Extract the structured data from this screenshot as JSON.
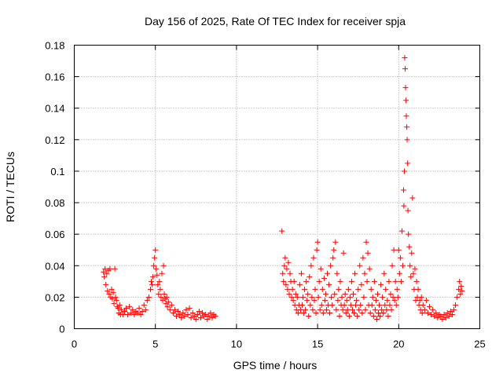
{
  "chart_data": {
    "type": "scatter",
    "title": "Day 156 of 2025, Rate Of TEC Index for receiver spja",
    "xlabel": "GPS time / hours",
    "ylabel": "ROTI / TECUs",
    "xlim": [
      0,
      25
    ],
    "ylim": [
      0,
      0.18
    ],
    "xticks": [
      0,
      5,
      10,
      15,
      20,
      25
    ],
    "yticks": [
      0,
      0.02,
      0.04,
      0.06,
      0.08,
      0.1,
      0.12,
      0.14,
      0.16,
      0.18
    ],
    "xtick_labels": [
      "0",
      "5",
      "10",
      "15",
      "20",
      "25"
    ],
    "ytick_labels": [
      "0",
      "0.02",
      "0.04",
      "0.06",
      "0.08",
      "0.1",
      "0.12",
      "0.14",
      "0.16",
      "0.18"
    ],
    "grid": true,
    "marker": "+",
    "color": "#ff0000",
    "series": [
      {
        "name": "ROTI",
        "points": [
          [
            1.8,
            0.036
          ],
          [
            1.85,
            0.033
          ],
          [
            1.9,
            0.038
          ],
          [
            1.95,
            0.028
          ],
          [
            2.0,
            0.035
          ],
          [
            2.05,
            0.024
          ],
          [
            2.1,
            0.037
          ],
          [
            2.15,
            0.022
          ],
          [
            2.2,
            0.038
          ],
          [
            2.25,
            0.02
          ],
          [
            2.3,
            0.025
          ],
          [
            2.35,
            0.019
          ],
          [
            2.4,
            0.023
          ],
          [
            2.45,
            0.016
          ],
          [
            2.5,
            0.038
          ],
          [
            2.55,
            0.02
          ],
          [
            2.6,
            0.018
          ],
          [
            2.65,
            0.014
          ],
          [
            2.7,
            0.013
          ],
          [
            2.75,
            0.01
          ],
          [
            2.8,
            0.015
          ],
          [
            2.85,
            0.009
          ],
          [
            2.9,
            0.012
          ],
          [
            3.0,
            0.009
          ],
          [
            3.1,
            0.011
          ],
          [
            3.2,
            0.013
          ],
          [
            3.3,
            0.009
          ],
          [
            3.4,
            0.014
          ],
          [
            3.5,
            0.01
          ],
          [
            3.6,
            0.012
          ],
          [
            3.7,
            0.009
          ],
          [
            3.8,
            0.011
          ],
          [
            3.9,
            0.01
          ],
          [
            4.0,
            0.013
          ],
          [
            4.1,
            0.009
          ],
          [
            4.2,
            0.011
          ],
          [
            4.3,
            0.015
          ],
          [
            4.4,
            0.012
          ],
          [
            4.5,
            0.018
          ],
          [
            4.6,
            0.02
          ],
          [
            4.7,
            0.025
          ],
          [
            4.75,
            0.03
          ],
          [
            4.8,
            0.028
          ],
          [
            4.85,
            0.033
          ],
          [
            4.9,
            0.04
          ],
          [
            4.95,
            0.045
          ],
          [
            5.0,
            0.05
          ],
          [
            5.05,
            0.038
          ],
          [
            5.1,
            0.034
          ],
          [
            5.15,
            0.028
          ],
          [
            5.2,
            0.022
          ],
          [
            5.25,
            0.03
          ],
          [
            5.3,
            0.025
          ],
          [
            5.35,
            0.02
          ],
          [
            5.4,
            0.035
          ],
          [
            5.45,
            0.018
          ],
          [
            5.5,
            0.04
          ],
          [
            5.55,
            0.022
          ],
          [
            5.6,
            0.019
          ],
          [
            5.65,
            0.016
          ],
          [
            5.7,
            0.02
          ],
          [
            5.75,
            0.014
          ],
          [
            5.8,
            0.017
          ],
          [
            5.9,
            0.012
          ],
          [
            6.0,
            0.015
          ],
          [
            6.1,
            0.01
          ],
          [
            6.2,
            0.012
          ],
          [
            6.3,
            0.008
          ],
          [
            6.4,
            0.011
          ],
          [
            6.5,
            0.009
          ],
          [
            6.6,
            0.007
          ],
          [
            6.7,
            0.01
          ],
          [
            6.8,
            0.008
          ],
          [
            6.9,
            0.012
          ],
          [
            7.0,
            0.009
          ],
          [
            7.1,
            0.013
          ],
          [
            7.2,
            0.007
          ],
          [
            7.3,
            0.01
          ],
          [
            7.4,
            0.008
          ],
          [
            7.5,
            0.006
          ],
          [
            7.6,
            0.009
          ],
          [
            7.7,
            0.011
          ],
          [
            7.8,
            0.007
          ],
          [
            7.9,
            0.01
          ],
          [
            8.0,
            0.008
          ],
          [
            8.1,
            0.009
          ],
          [
            8.2,
            0.006
          ],
          [
            8.3,
            0.008
          ],
          [
            8.4,
            0.01
          ],
          [
            8.5,
            0.007
          ],
          [
            8.6,
            0.009
          ],
          [
            8.7,
            0.008
          ],
          [
            12.8,
            0.062
          ],
          [
            12.85,
            0.035
          ],
          [
            12.9,
            0.03
          ],
          [
            12.95,
            0.04
          ],
          [
            13.0,
            0.045
          ],
          [
            13.05,
            0.028
          ],
          [
            13.1,
            0.038
          ],
          [
            13.15,
            0.025
          ],
          [
            13.2,
            0.042
          ],
          [
            13.25,
            0.022
          ],
          [
            13.3,
            0.035
          ],
          [
            13.35,
            0.03
          ],
          [
            13.4,
            0.02
          ],
          [
            13.45,
            0.025
          ],
          [
            13.5,
            0.018
          ],
          [
            13.55,
            0.03
          ],
          [
            13.6,
            0.015
          ],
          [
            13.65,
            0.022
          ],
          [
            13.7,
            0.012
          ],
          [
            13.75,
            0.02
          ],
          [
            13.8,
            0.01
          ],
          [
            13.85,
            0.015
          ],
          [
            13.9,
            0.028
          ],
          [
            13.95,
            0.012
          ],
          [
            14.0,
            0.035
          ],
          [
            14.05,
            0.015
          ],
          [
            14.1,
            0.02
          ],
          [
            14.15,
            0.01
          ],
          [
            14.2,
            0.025
          ],
          [
            14.25,
            0.012
          ],
          [
            14.3,
            0.03
          ],
          [
            14.35,
            0.018
          ],
          [
            14.4,
            0.022
          ],
          [
            14.45,
            0.008
          ],
          [
            14.5,
            0.033
          ],
          [
            14.55,
            0.015
          ],
          [
            14.6,
            0.04
          ],
          [
            14.65,
            0.02
          ],
          [
            14.7,
            0.012
          ],
          [
            14.75,
            0.045
          ],
          [
            14.8,
            0.018
          ],
          [
            14.85,
            0.025
          ],
          [
            14.9,
            0.01
          ],
          [
            14.95,
            0.05
          ],
          [
            15.0,
            0.055
          ],
          [
            15.05,
            0.02
          ],
          [
            15.1,
            0.03
          ],
          [
            15.15,
            0.012
          ],
          [
            15.2,
            0.038
          ],
          [
            15.25,
            0.015
          ],
          [
            15.3,
            0.025
          ],
          [
            15.35,
            0.01
          ],
          [
            15.4,
            0.032
          ],
          [
            15.45,
            0.018
          ],
          [
            15.5,
            0.022
          ],
          [
            15.55,
            0.012
          ],
          [
            15.6,
            0.035
          ],
          [
            15.65,
            0.015
          ],
          [
            15.7,
            0.028
          ],
          [
            15.75,
            0.01
          ],
          [
            15.8,
            0.04
          ],
          [
            15.85,
            0.02
          ],
          [
            15.9,
            0.015
          ],
          [
            15.95,
            0.045
          ],
          [
            16.0,
            0.05
          ],
          [
            16.05,
            0.022
          ],
          [
            16.1,
            0.055
          ],
          [
            16.15,
            0.012
          ],
          [
            16.2,
            0.035
          ],
          [
            16.25,
            0.018
          ],
          [
            16.3,
            0.025
          ],
          [
            16.35,
            0.008
          ],
          [
            16.4,
            0.03
          ],
          [
            16.45,
            0.015
          ],
          [
            16.5,
            0.02
          ],
          [
            16.55,
            0.012
          ],
          [
            16.6,
            0.048
          ],
          [
            16.65,
            0.015
          ],
          [
            16.7,
            0.022
          ],
          [
            16.75,
            0.01
          ],
          [
            16.8,
            0.018
          ],
          [
            16.85,
            0.012
          ],
          [
            16.9,
            0.025
          ],
          [
            16.95,
            0.008
          ],
          [
            17.0,
            0.02
          ],
          [
            17.05,
            0.015
          ],
          [
            17.1,
            0.03
          ],
          [
            17.15,
            0.012
          ],
          [
            17.2,
            0.022
          ],
          [
            17.25,
            0.01
          ],
          [
            17.3,
            0.035
          ],
          [
            17.35,
            0.015
          ],
          [
            17.4,
            0.018
          ],
          [
            17.45,
            0.008
          ],
          [
            17.5,
            0.025
          ],
          [
            17.55,
            0.012
          ],
          [
            17.6,
            0.04
          ],
          [
            17.65,
            0.015
          ],
          [
            17.7,
            0.028
          ],
          [
            17.75,
            0.01
          ],
          [
            17.8,
            0.045
          ],
          [
            17.85,
            0.02
          ],
          [
            17.9,
            0.035
          ],
          [
            17.95,
            0.012
          ],
          [
            18.0,
            0.055
          ],
          [
            18.05,
            0.03
          ],
          [
            18.1,
            0.048
          ],
          [
            18.15,
            0.015
          ],
          [
            18.2,
            0.038
          ],
          [
            18.25,
            0.01
          ],
          [
            18.3,
            0.025
          ],
          [
            18.35,
            0.015
          ],
          [
            18.4,
            0.02
          ],
          [
            18.45,
            0.008
          ],
          [
            18.5,
            0.03
          ],
          [
            18.55,
            0.012
          ],
          [
            18.6,
            0.018
          ],
          [
            18.65,
            0.006
          ],
          [
            18.7,
            0.022
          ],
          [
            18.75,
            0.01
          ],
          [
            18.8,
            0.015
          ],
          [
            18.85,
            0.008
          ],
          [
            18.9,
            0.028
          ],
          [
            18.95,
            0.012
          ],
          [
            19.0,
            0.02
          ],
          [
            19.05,
            0.01
          ],
          [
            19.1,
            0.035
          ],
          [
            19.15,
            0.015
          ],
          [
            19.2,
            0.025
          ],
          [
            19.25,
            0.012
          ],
          [
            19.3,
            0.018
          ],
          [
            19.35,
            0.008
          ],
          [
            19.4,
            0.03
          ],
          [
            19.45,
            0.015
          ],
          [
            19.5,
            0.022
          ],
          [
            19.55,
            0.012
          ],
          [
            19.6,
            0.04
          ],
          [
            19.65,
            0.02
          ],
          [
            19.7,
            0.05
          ],
          [
            19.75,
            0.018
          ],
          [
            19.8,
            0.03
          ],
          [
            19.85,
            0.015
          ],
          [
            19.9,
            0.025
          ],
          [
            19.95,
            0.02
          ],
          [
            20.0,
            0.05
          ],
          [
            20.05,
            0.035
          ],
          [
            20.1,
            0.045
          ],
          [
            20.15,
            0.03
          ],
          [
            20.2,
            0.062
          ],
          [
            20.25,
            0.04
          ],
          [
            20.3,
            0.088
          ],
          [
            20.32,
            0.078
          ],
          [
            20.35,
            0.1
          ],
          [
            20.37,
            0.172
          ],
          [
            20.4,
            0.165
          ],
          [
            20.42,
            0.153
          ],
          [
            20.45,
            0.145
          ],
          [
            20.47,
            0.135
          ],
          [
            20.5,
            0.128
          ],
          [
            20.52,
            0.12
          ],
          [
            20.55,
            0.105
          ],
          [
            20.57,
            0.075
          ],
          [
            20.6,
            0.06
          ],
          [
            20.65,
            0.052
          ],
          [
            20.7,
            0.04
          ],
          [
            20.75,
            0.033
          ],
          [
            20.8,
            0.048
          ],
          [
            20.85,
            0.083
          ],
          [
            20.9,
            0.035
          ],
          [
            20.95,
            0.025
          ],
          [
            21.0,
            0.038
          ],
          [
            21.05,
            0.018
          ],
          [
            21.1,
            0.03
          ],
          [
            21.15,
            0.02
          ],
          [
            21.2,
            0.025
          ],
          [
            21.25,
            0.015
          ],
          [
            21.3,
            0.018
          ],
          [
            21.35,
            0.012
          ],
          [
            21.4,
            0.02
          ],
          [
            21.45,
            0.01
          ],
          [
            21.5,
            0.015
          ],
          [
            21.6,
            0.012
          ],
          [
            21.7,
            0.018
          ],
          [
            21.8,
            0.01
          ],
          [
            21.9,
            0.014
          ],
          [
            22.0,
            0.009
          ],
          [
            22.1,
            0.012
          ],
          [
            22.2,
            0.008
          ],
          [
            22.3,
            0.01
          ],
          [
            22.4,
            0.007
          ],
          [
            22.5,
            0.009
          ],
          [
            22.6,
            0.008
          ],
          [
            22.7,
            0.006
          ],
          [
            22.8,
            0.009
          ],
          [
            22.9,
            0.007
          ],
          [
            23.0,
            0.01
          ],
          [
            23.1,
            0.008
          ],
          [
            23.2,
            0.011
          ],
          [
            23.3,
            0.009
          ],
          [
            23.4,
            0.012
          ],
          [
            23.5,
            0.015
          ],
          [
            23.6,
            0.02
          ],
          [
            23.7,
            0.025
          ],
          [
            23.75,
            0.03
          ],
          [
            23.8,
            0.022
          ],
          [
            23.85,
            0.027
          ],
          [
            23.9,
            0.024
          ]
        ]
      }
    ]
  }
}
